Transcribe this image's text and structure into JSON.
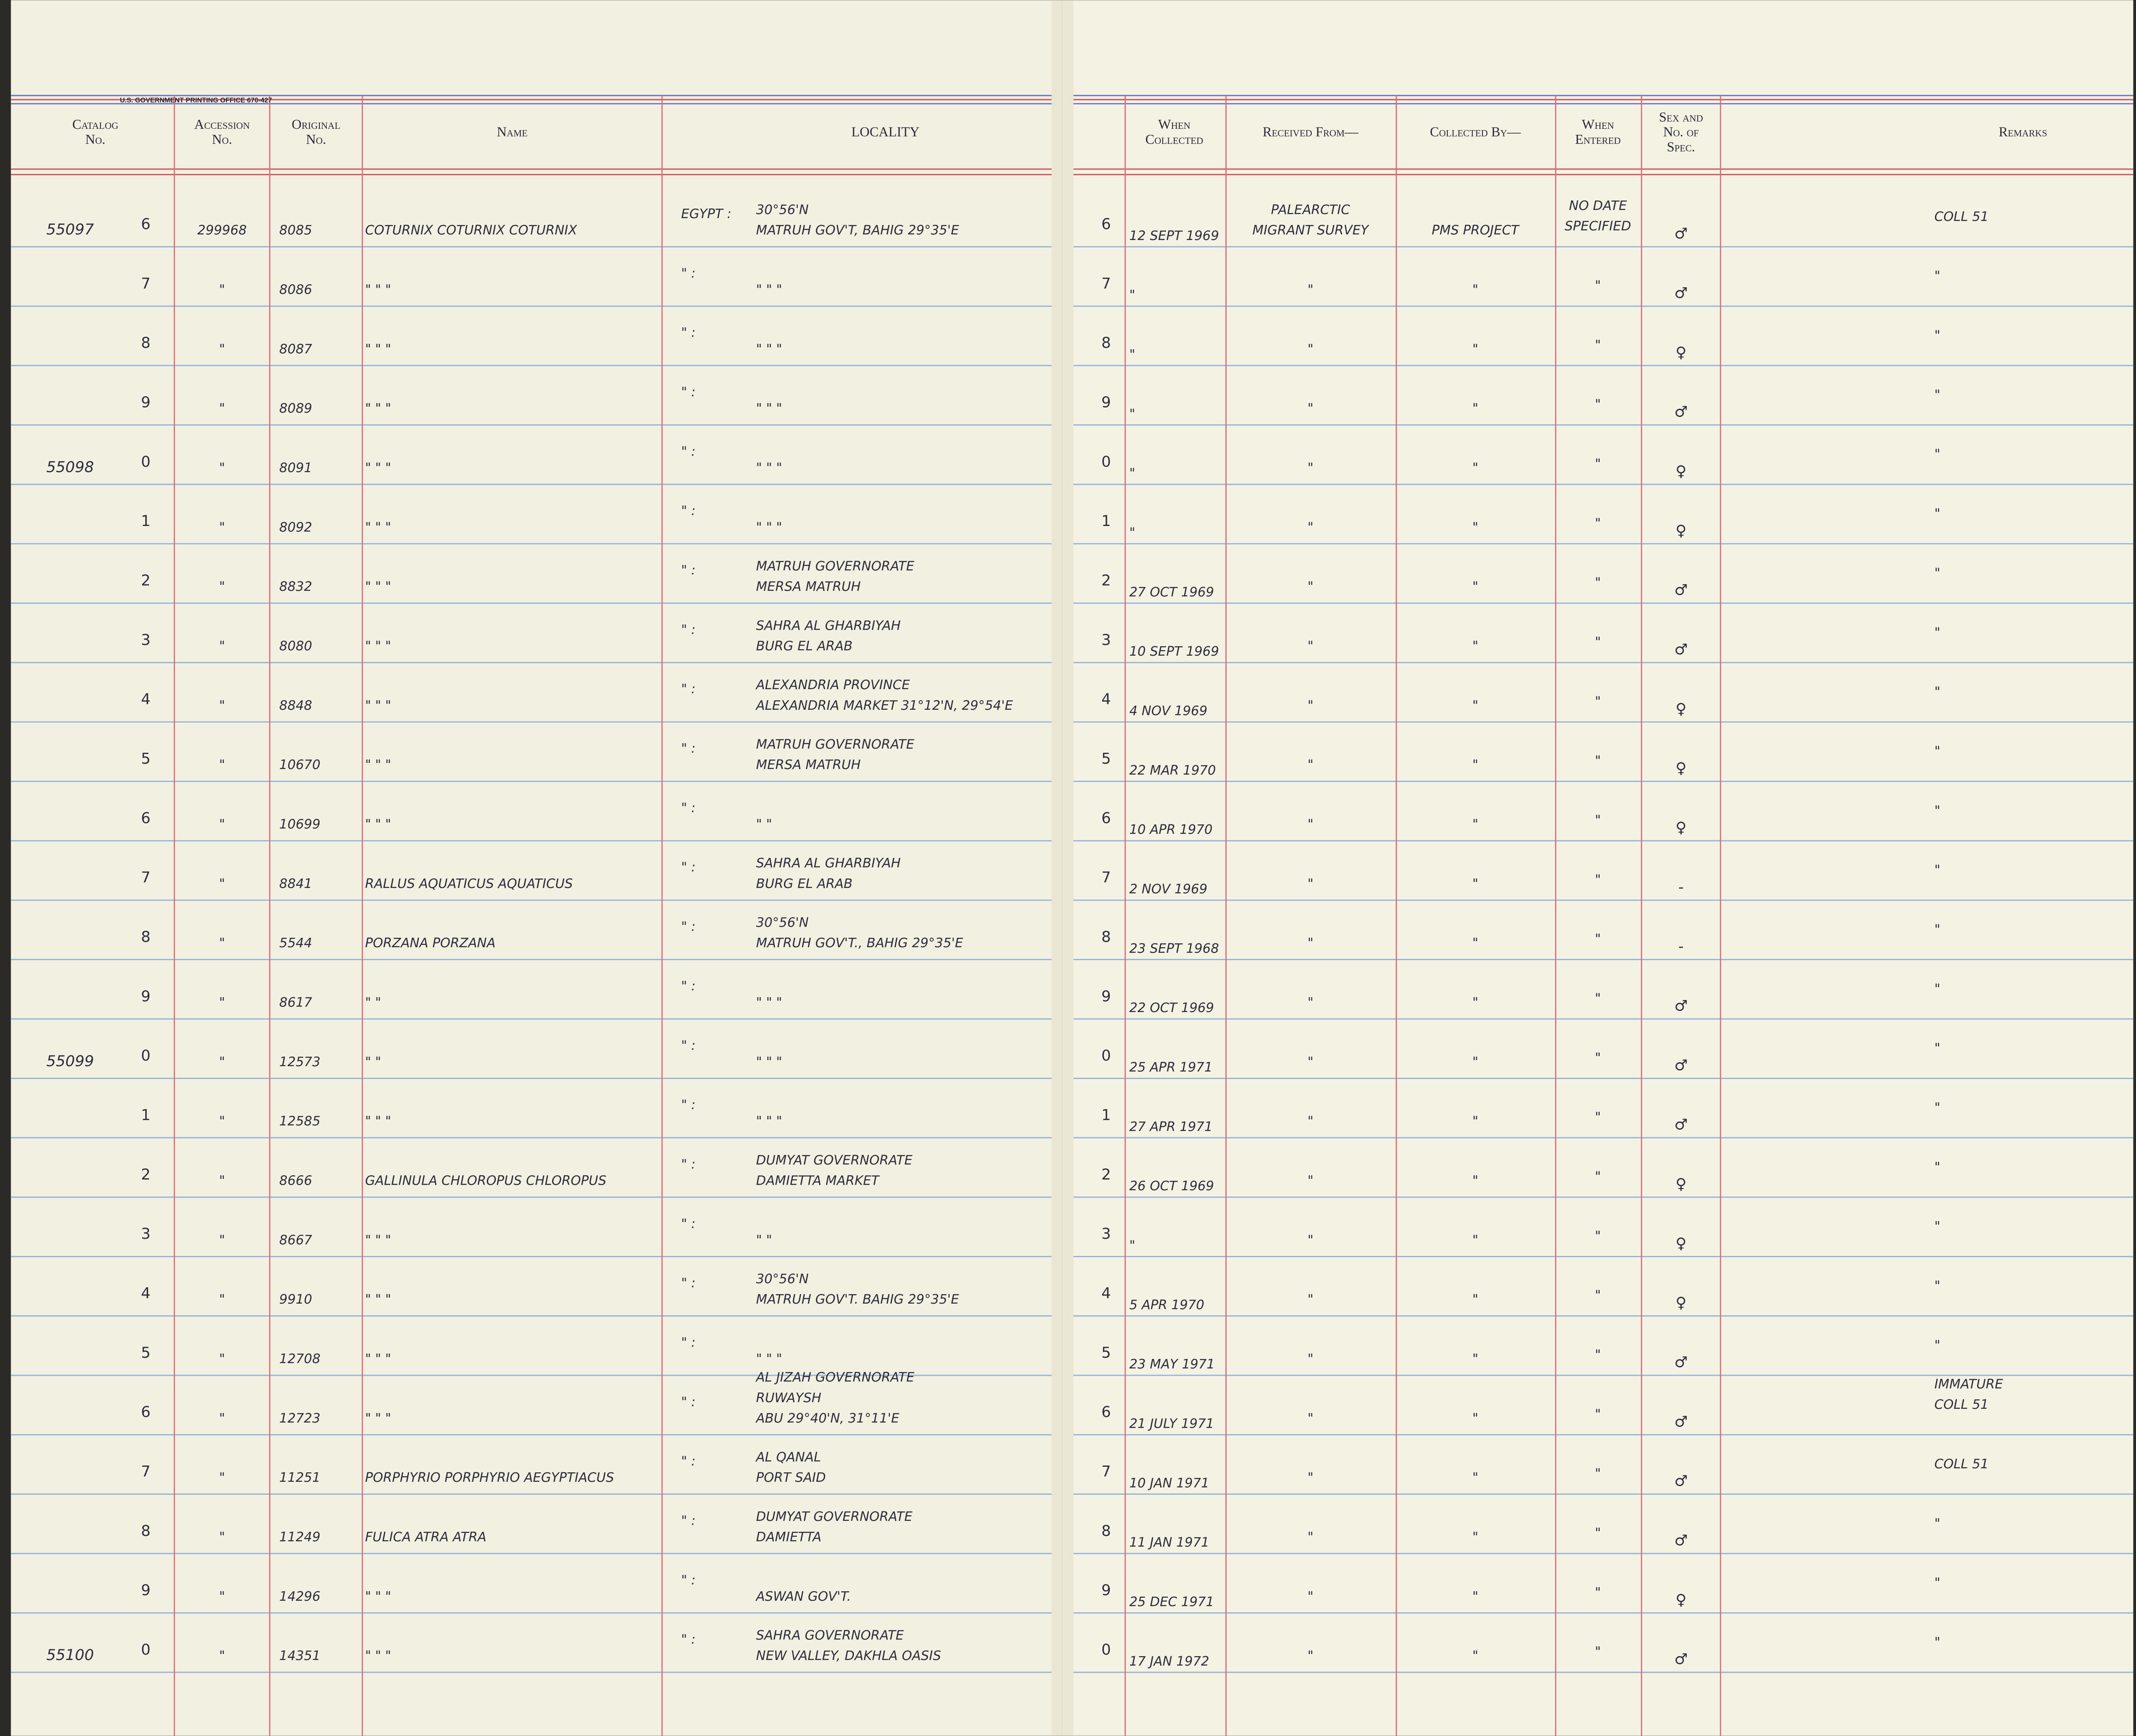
{
  "printer": "U.S. GOVERNMENT PRINTING OFFICE 670-427",
  "header": {
    "left": [
      [
        "Catalog",
        "No."
      ],
      [
        "Accession",
        "No."
      ],
      [
        "Original",
        "No."
      ],
      [
        "Name"
      ],
      [
        "LOCALITY"
      ]
    ],
    "right": [
      [
        "When",
        "Collected"
      ],
      [
        "Received From—"
      ],
      [
        "Collected By—"
      ],
      [
        "When",
        "Entered"
      ],
      [
        "Sex and",
        "No. of",
        "Spec."
      ],
      [
        "Remarks"
      ]
    ]
  },
  "rows": [
    {
      "cat": "55097",
      "digit": "6",
      "acc": "299968",
      "orig": "8085",
      "name": "COTURNIX COTURNIX COTURNIX",
      "country": "EGYPT :",
      "loc": [
        "30°56'N",
        "MATRUH GOV'T, BAHIG 29°35'E"
      ],
      "collected": "12 SEPT 1969",
      "received": [
        "PALEARCTIC",
        "MIGRANT SURVEY"
      ],
      "by": "PMS PROJECT",
      "entered": [
        "NO DATE",
        "SPECIFIED"
      ],
      "sex": "♂",
      "remarks": [
        "COLL 51"
      ]
    },
    {
      "digit": "7",
      "acc": "\"",
      "orig": "8086",
      "name": "\"     \"     \"",
      "country": "\"  :",
      "loc": [
        "\"     \"     \""
      ],
      "collected": "\"",
      "received": [
        "\""
      ],
      "by": "\"",
      "entered": [
        "\""
      ],
      "sex": "♂",
      "remarks": [
        "\""
      ]
    },
    {
      "digit": "8",
      "acc": "\"",
      "orig": "8087",
      "name": "\"     \"     \"",
      "country": "\"  :",
      "loc": [
        "\"     \"     \""
      ],
      "collected": "\"",
      "received": [
        "\""
      ],
      "by": "\"",
      "entered": [
        "\""
      ],
      "sex": "♀",
      "remarks": [
        "\""
      ]
    },
    {
      "digit": "9",
      "acc": "\"",
      "orig": "8089",
      "name": "\"     \"     \"",
      "country": "\"  :",
      "loc": [
        "\"     \"     \""
      ],
      "collected": "\"",
      "received": [
        "\""
      ],
      "by": "\"",
      "entered": [
        "\""
      ],
      "sex": "♂",
      "remarks": [
        "\""
      ]
    },
    {
      "cat": "55098",
      "digit": "0",
      "acc": "\"",
      "orig": "8091",
      "name": "\"     \"     \"",
      "country": "\"  :",
      "loc": [
        "\"     \"     \""
      ],
      "collected": "\"",
      "received": [
        "\""
      ],
      "by": "\"",
      "entered": [
        "\""
      ],
      "sex": "♀",
      "remarks": [
        "\""
      ]
    },
    {
      "digit": "1",
      "acc": "\"",
      "orig": "8092",
      "name": "\"     \"     \"",
      "country": "\"  :",
      "loc": [
        "\"     \"     \""
      ],
      "collected": "\"",
      "received": [
        "\""
      ],
      "by": "\"",
      "entered": [
        "\""
      ],
      "sex": "♀",
      "remarks": [
        "\""
      ]
    },
    {
      "digit": "2",
      "acc": "\"",
      "orig": "8832",
      "name": "\"     \"     \"",
      "country": "\"  :",
      "loc": [
        "MATRUH GOVERNORATE",
        "MERSA MATRUH"
      ],
      "collected": "27 OCT 1969",
      "received": [
        "\""
      ],
      "by": "\"",
      "entered": [
        "\""
      ],
      "sex": "♂",
      "remarks": [
        "\""
      ]
    },
    {
      "digit": "3",
      "acc": "\"",
      "orig": "8080",
      "name": "\"     \"     \"",
      "country": "\"  :",
      "loc": [
        "SAHRA AL GHARBIYAH",
        "BURG EL ARAB"
      ],
      "collected": "10 SEPT 1969",
      "received": [
        "\""
      ],
      "by": "\"",
      "entered": [
        "\""
      ],
      "sex": "♂",
      "remarks": [
        "\""
      ]
    },
    {
      "digit": "4",
      "acc": "\"",
      "orig": "8848",
      "name": "\"     \"     \"",
      "country": "\"  :",
      "loc": [
        "ALEXANDRIA PROVINCE",
        "ALEXANDRIA MARKET 31°12'N, 29°54'E"
      ],
      "collected": "4 NOV 1969",
      "received": [
        "\""
      ],
      "by": "\"",
      "entered": [
        "\""
      ],
      "sex": "♀",
      "remarks": [
        "\""
      ]
    },
    {
      "digit": "5",
      "acc": "\"",
      "orig": "10670",
      "name": "\"     \"     \"",
      "country": "\"  :",
      "loc": [
        "MATRUH GOVERNORATE",
        "MERSA MATRUH"
      ],
      "collected": "22 MAR 1970",
      "received": [
        "\""
      ],
      "by": "\"",
      "entered": [
        "\""
      ],
      "sex": "♀",
      "remarks": [
        "\""
      ]
    },
    {
      "digit": "6",
      "acc": "\"",
      "orig": "10699",
      "name": "\"     \"     \"",
      "country": "\"  :",
      "loc": [
        "\"     \""
      ],
      "collected": "10 APR 1970",
      "received": [
        "\""
      ],
      "by": "\"",
      "entered": [
        "\""
      ],
      "sex": "♀",
      "remarks": [
        "\""
      ]
    },
    {
      "digit": "7",
      "acc": "\"",
      "orig": "8841",
      "name": "RALLUS AQUATICUS AQUATICUS",
      "country": "\"  :",
      "loc": [
        "SAHRA AL GHARBIYAH",
        "BURG EL ARAB"
      ],
      "collected": "2 NOV 1969",
      "received": [
        "\""
      ],
      "by": "\"",
      "entered": [
        "\""
      ],
      "sex": "-",
      "remarks": [
        "\""
      ]
    },
    {
      "digit": "8",
      "acc": "\"",
      "orig": "5544",
      "name": "PORZANA PORZANA",
      "country": "\"  :",
      "loc": [
        "30°56'N",
        "MATRUH GOV'T., BAHIG 29°35'E"
      ],
      "collected": "23 SEPT 1968",
      "received": [
        "\""
      ],
      "by": "\"",
      "entered": [
        "\""
      ],
      "sex": "-",
      "remarks": [
        "\""
      ]
    },
    {
      "digit": "9",
      "acc": "\"",
      "orig": "8617",
      "name": "\"     \"",
      "country": "\"  :",
      "loc": [
        "\"     \"     \""
      ],
      "collected": "22 OCT 1969",
      "received": [
        "\""
      ],
      "by": "\"",
      "entered": [
        "\""
      ],
      "sex": "♂",
      "remarks": [
        "\""
      ]
    },
    {
      "cat": "55099",
      "digit": "0",
      "acc": "\"",
      "orig": "12573",
      "name": "\"     \"",
      "country": "\"  :",
      "loc": [
        "\"     \"     \""
      ],
      "collected": "25 APR 1971",
      "received": [
        "\""
      ],
      "by": "\"",
      "entered": [
        "\""
      ],
      "sex": "♂",
      "remarks": [
        "\""
      ]
    },
    {
      "digit": "1",
      "acc": "\"",
      "orig": "12585",
      "name": "\"     \"     \"",
      "country": "\"  :",
      "loc": [
        "\"     \"     \""
      ],
      "collected": "27 APR 1971",
      "received": [
        "\""
      ],
      "by": "\"",
      "entered": [
        "\""
      ],
      "sex": "♂",
      "remarks": [
        "\""
      ]
    },
    {
      "digit": "2",
      "acc": "\"",
      "orig": "8666",
      "name": "GALLINULA CHLOROPUS CHLOROPUS",
      "country": "\"  :",
      "loc": [
        "DUMYAT GOVERNORATE",
        "DAMIETTA MARKET"
      ],
      "collected": "26 OCT 1969",
      "received": [
        "\""
      ],
      "by": "\"",
      "entered": [
        "\""
      ],
      "sex": "♀",
      "remarks": [
        "\""
      ]
    },
    {
      "digit": "3",
      "acc": "\"",
      "orig": "8667",
      "name": "\"     \"     \"",
      "country": "\"  :",
      "loc": [
        "\"     \""
      ],
      "collected": "\"",
      "received": [
        "\""
      ],
      "by": "\"",
      "entered": [
        "\""
      ],
      "sex": "♀",
      "remarks": [
        "\""
      ]
    },
    {
      "digit": "4",
      "acc": "\"",
      "orig": "9910",
      "name": "\"     \"     \"",
      "country": "\"  :",
      "loc": [
        "30°56'N",
        "MATRUH GOV'T. BAHIG 29°35'E"
      ],
      "collected": "5 APR 1970",
      "received": [
        "\""
      ],
      "by": "\"",
      "entered": [
        "\""
      ],
      "sex": "♀",
      "remarks": [
        "\""
      ]
    },
    {
      "digit": "5",
      "acc": "\"",
      "orig": "12708",
      "name": "\"     \"     \"",
      "country": "\"  :",
      "loc": [
        "\"     \"     \""
      ],
      "collected": "23 MAY 1971",
      "received": [
        "\""
      ],
      "by": "\"",
      "entered": [
        "\""
      ],
      "sex": "♂",
      "remarks": [
        "\""
      ]
    },
    {
      "digit": "6",
      "acc": "\"",
      "orig": "12723",
      "name": "\"     \"     \"",
      "country": "\"  :",
      "loc": [
        "AL JIZAH GOVERNORATE",
        "RUWAYSH",
        "ABU 29°40'N, 31°11'E"
      ],
      "collected": "21 JULY 1971",
      "received": [
        "\""
      ],
      "by": "\"",
      "entered": [
        "\""
      ],
      "sex": "♂",
      "remarks": [
        "IMMATURE",
        "COLL 51"
      ]
    },
    {
      "digit": "7",
      "acc": "\"",
      "orig": "11251",
      "name": "PORPHYRIO PORPHYRIO AEGYPTIACUS",
      "country": "\"  :",
      "loc": [
        "AL QANAL",
        "PORT SAID"
      ],
      "collected": "10 JAN 1971",
      "received": [
        "\""
      ],
      "by": "\"",
      "entered": [
        "\""
      ],
      "sex": "♂",
      "remarks": [
        "COLL 51"
      ]
    },
    {
      "digit": "8",
      "acc": "\"",
      "orig": "11249",
      "name": "FULICA ATRA ATRA",
      "country": "\"  :",
      "loc": [
        "DUMYAT GOVERNORATE",
        "DAMIETTA"
      ],
      "collected": "11 JAN 1971",
      "received": [
        "\""
      ],
      "by": "\"",
      "entered": [
        "\""
      ],
      "sex": "♂",
      "remarks": [
        "\""
      ]
    },
    {
      "digit": "9",
      "acc": "\"",
      "orig": "14296",
      "name": "\"     \"     \"",
      "country": "\"  :",
      "loc": [
        "ASWAN GOV'T."
      ],
      "collected": "25 DEC 1971",
      "received": [
        "\""
      ],
      "by": "\"",
      "entered": [
        "\""
      ],
      "sex": "♀",
      "remarks": [
        "\""
      ]
    },
    {
      "cat": "55100",
      "digit": "0",
      "acc": "\"",
      "orig": "14351",
      "name": "\"     \"     \"",
      "country": "\"  :",
      "loc": [
        "SAHRA GOVERNORATE",
        "NEW VALLEY, DAKHLA OASIS"
      ],
      "collected": "17 JAN 1972",
      "received": [
        "\""
      ],
      "by": "\"",
      "entered": [
        "\""
      ],
      "sex": "♂",
      "remarks": [
        "\""
      ]
    }
  ]
}
